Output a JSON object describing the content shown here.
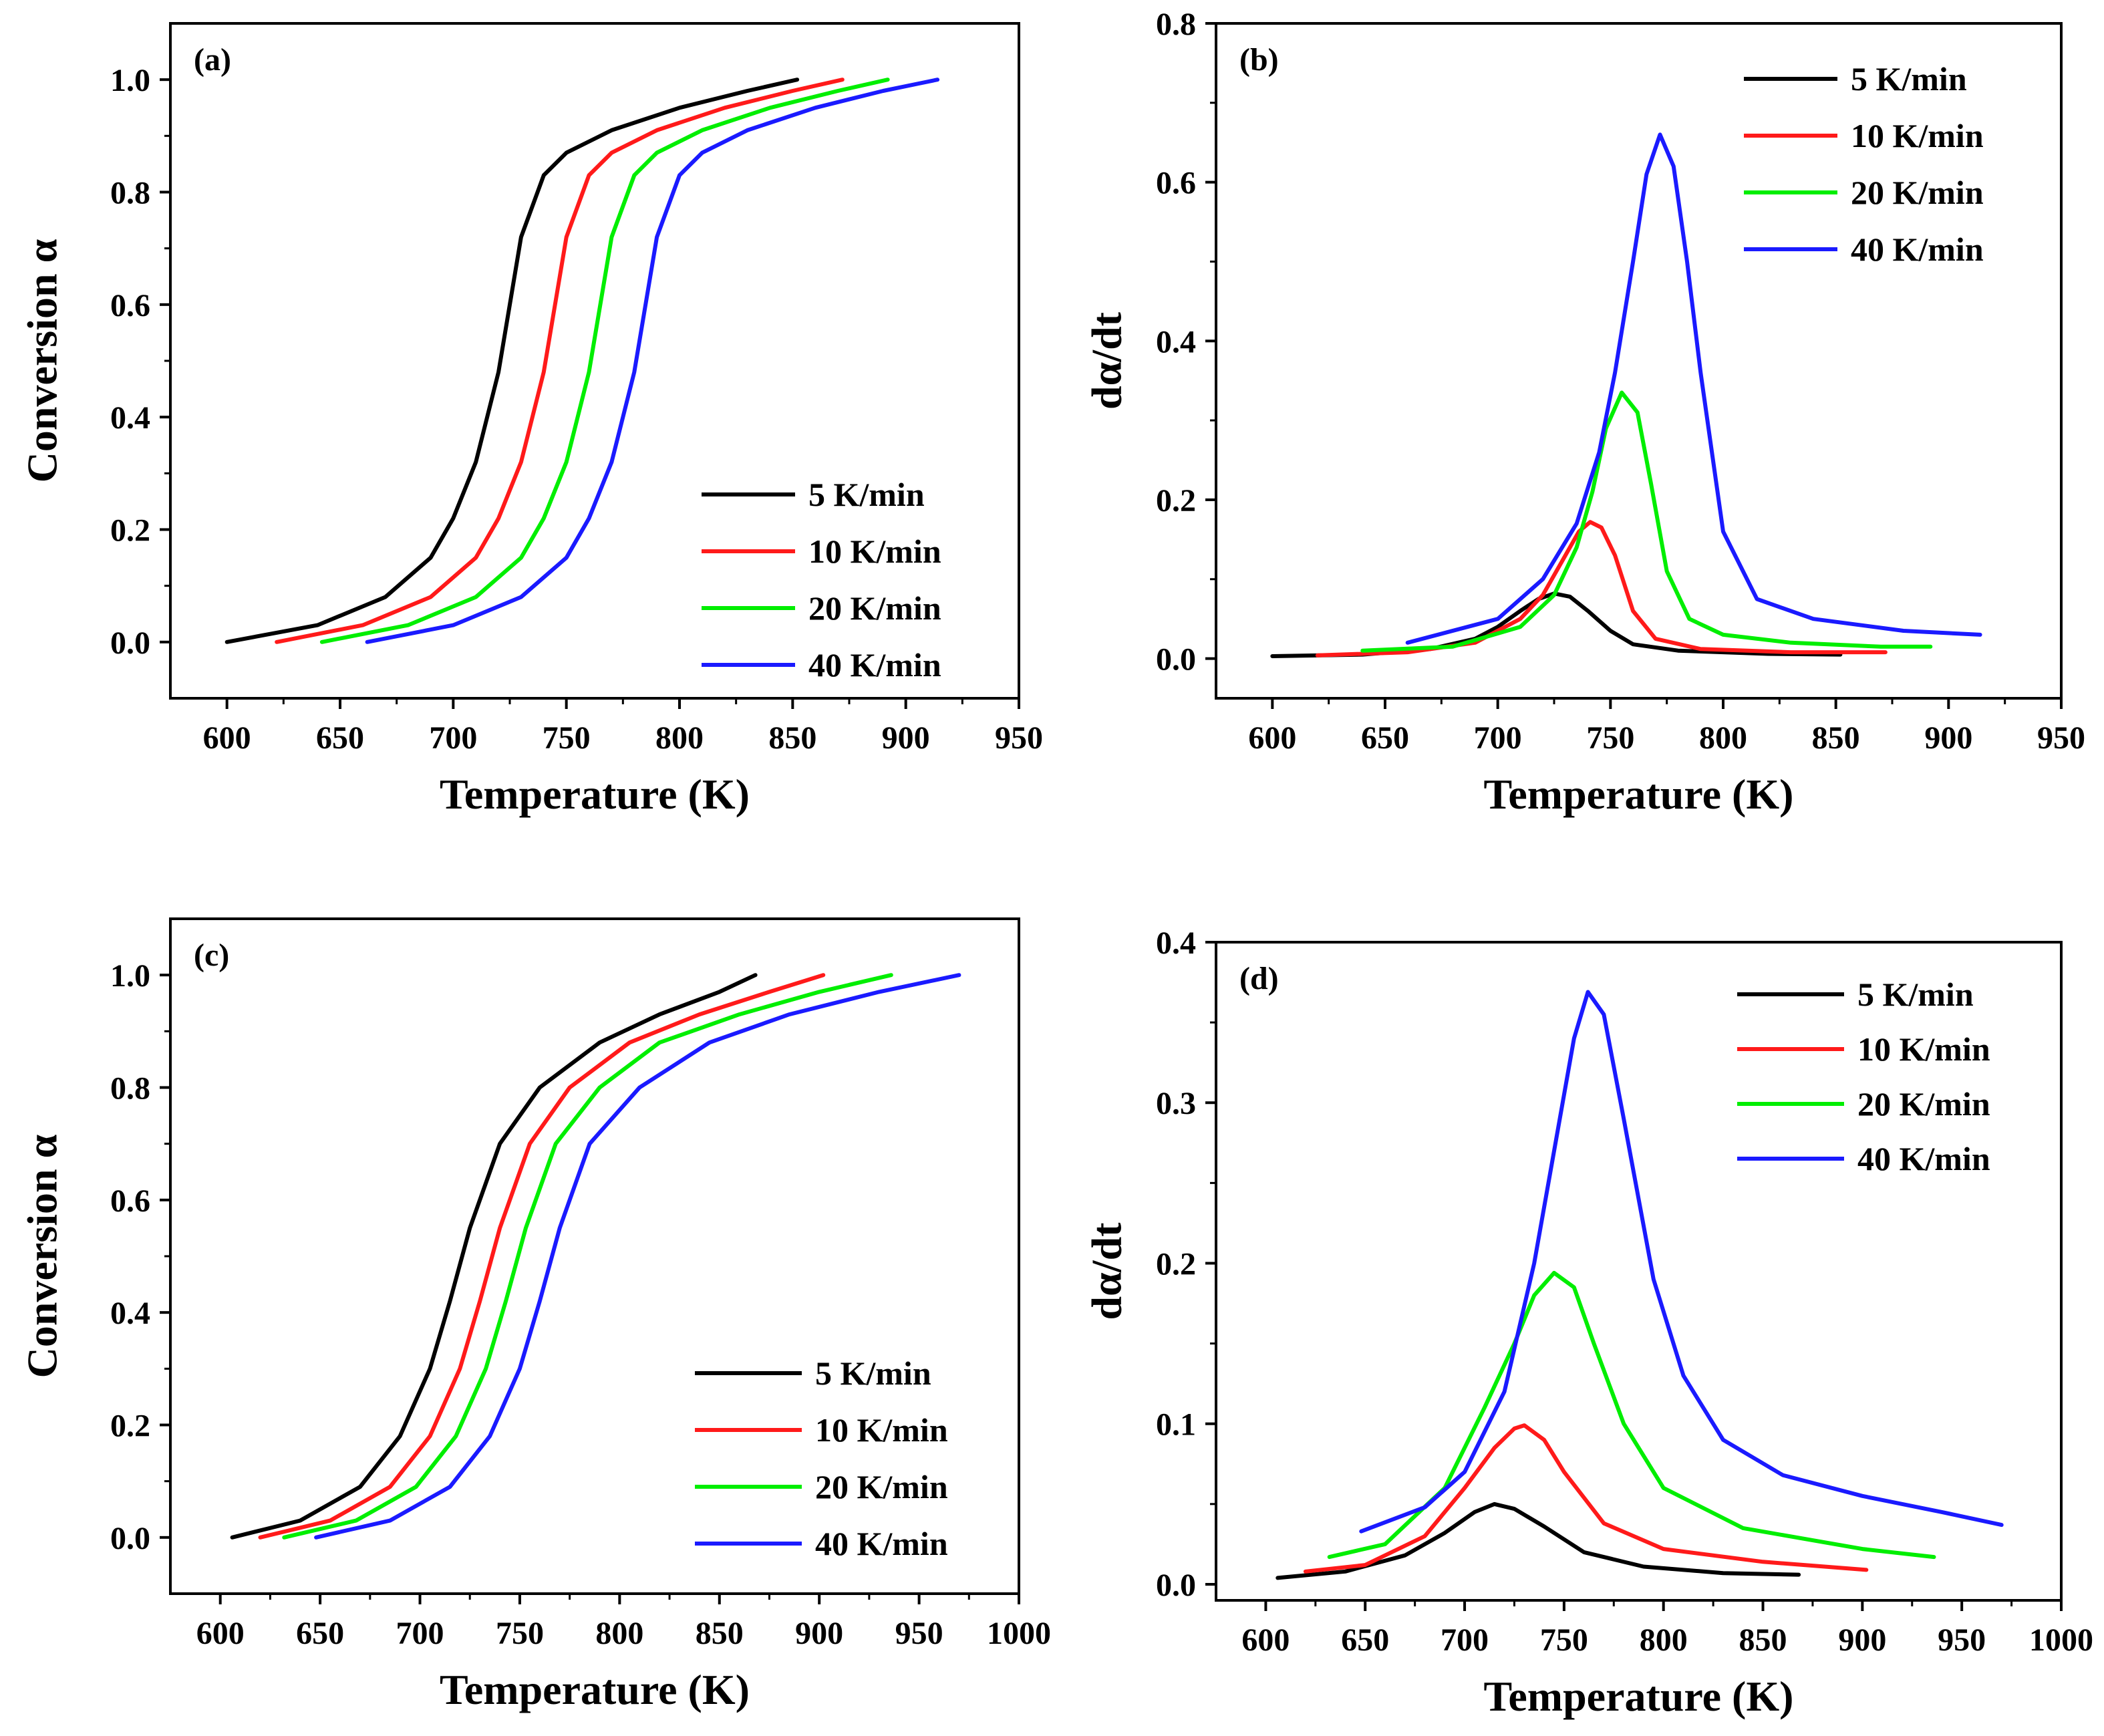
{
  "figure": {
    "colors": {
      "black": "#000000",
      "red": "#ff1a1a",
      "green": "#00ee00",
      "blue": "#1a1aff"
    }
  },
  "chart_data": [
    {
      "id": "a",
      "type": "line",
      "panel_label": "(a)",
      "xlabel": "Temperature (K)",
      "ylabel": "Conversion α",
      "xlim": [
        575,
        950
      ],
      "ylim": [
        -0.1,
        1.1
      ],
      "xticks": [
        600,
        650,
        700,
        750,
        800,
        850,
        900,
        950
      ],
      "yticks": [
        0.0,
        0.2,
        0.4,
        0.6,
        0.8,
        1.0
      ],
      "xticklabels": [
        "600",
        "650",
        "700",
        "750",
        "800",
        "850",
        "900",
        "950"
      ],
      "yticklabels": [
        "0.0",
        "0.2",
        "0.4",
        "0.6",
        "0.8",
        "1.0"
      ],
      "legend": "lower-right",
      "grid": false,
      "series": [
        {
          "name": "5 K/min",
          "color": "#000000",
          "x": [
            600,
            640,
            670,
            690,
            700,
            710,
            720,
            730,
            740,
            750,
            770,
            800,
            830,
            852
          ],
          "y": [
            0.0,
            0.03,
            0.08,
            0.15,
            0.22,
            0.32,
            0.48,
            0.72,
            0.83,
            0.87,
            0.91,
            0.95,
            0.98,
            1.0
          ]
        },
        {
          "name": "10 K/min",
          "color": "#ff1a1a",
          "x": [
            622,
            660,
            690,
            710,
            720,
            730,
            740,
            750,
            760,
            770,
            790,
            820,
            850,
            872
          ],
          "y": [
            0.0,
            0.03,
            0.08,
            0.15,
            0.22,
            0.32,
            0.48,
            0.72,
            0.83,
            0.87,
            0.91,
            0.95,
            0.98,
            1.0
          ]
        },
        {
          "name": "20 K/min",
          "color": "#00ee00",
          "x": [
            642,
            680,
            710,
            730,
            740,
            750,
            760,
            770,
            780,
            790,
            810,
            840,
            870,
            892
          ],
          "y": [
            0.0,
            0.03,
            0.08,
            0.15,
            0.22,
            0.32,
            0.48,
            0.72,
            0.83,
            0.87,
            0.91,
            0.95,
            0.98,
            1.0
          ]
        },
        {
          "name": "40 K/min",
          "color": "#1a1aff",
          "x": [
            662,
            700,
            730,
            750,
            760,
            770,
            780,
            790,
            800,
            810,
            830,
            860,
            890,
            914
          ],
          "y": [
            0.0,
            0.03,
            0.08,
            0.15,
            0.22,
            0.32,
            0.48,
            0.72,
            0.83,
            0.87,
            0.91,
            0.95,
            0.98,
            1.0
          ]
        }
      ]
    },
    {
      "id": "b",
      "type": "line",
      "panel_label": "(b)",
      "xlabel": "Temperature (K)",
      "ylabel": "dα/dt",
      "xlim": [
        575,
        950
      ],
      "ylim": [
        -0.05,
        0.8
      ],
      "xticks": [
        600,
        650,
        700,
        750,
        800,
        850,
        900,
        950
      ],
      "yticks": [
        0.0,
        0.2,
        0.4,
        0.6,
        0.8
      ],
      "xticklabels": [
        "600",
        "650",
        "700",
        "750",
        "800",
        "850",
        "900",
        "950"
      ],
      "yticklabels": [
        "0.0",
        "0.2",
        "0.4",
        "0.6",
        "0.8"
      ],
      "legend": "top-right",
      "grid": false,
      "series": [
        {
          "name": "5 K/min",
          "color": "#000000",
          "x": [
            600,
            640,
            670,
            690,
            700,
            710,
            718,
            725,
            732,
            740,
            750,
            760,
            780,
            820,
            852
          ],
          "y": [
            0.003,
            0.005,
            0.012,
            0.025,
            0.04,
            0.06,
            0.075,
            0.082,
            0.078,
            0.06,
            0.035,
            0.018,
            0.01,
            0.006,
            0.005
          ]
        },
        {
          "name": "10 K/min",
          "color": "#ff1a1a",
          "x": [
            620,
            660,
            690,
            710,
            720,
            730,
            736,
            741,
            746,
            752,
            760,
            770,
            790,
            830,
            872
          ],
          "y": [
            0.004,
            0.008,
            0.02,
            0.05,
            0.08,
            0.13,
            0.16,
            0.172,
            0.165,
            0.13,
            0.06,
            0.025,
            0.012,
            0.008,
            0.008
          ]
        },
        {
          "name": "20 K/min",
          "color": "#00ee00",
          "x": [
            640,
            680,
            710,
            725,
            735,
            742,
            748,
            755,
            762,
            768,
            775,
            785,
            800,
            830,
            870,
            892
          ],
          "y": [
            0.01,
            0.015,
            0.04,
            0.08,
            0.14,
            0.21,
            0.29,
            0.335,
            0.31,
            0.22,
            0.11,
            0.05,
            0.03,
            0.02,
            0.015,
            0.015
          ]
        },
        {
          "name": "40 K/min",
          "color": "#1a1aff",
          "x": [
            660,
            700,
            720,
            735,
            745,
            752,
            760,
            766,
            772,
            778,
            784,
            790,
            800,
            815,
            840,
            880,
            914
          ],
          "y": [
            0.02,
            0.05,
            0.1,
            0.17,
            0.26,
            0.36,
            0.5,
            0.61,
            0.66,
            0.62,
            0.5,
            0.36,
            0.16,
            0.075,
            0.05,
            0.035,
            0.03
          ]
        }
      ]
    },
    {
      "id": "c",
      "type": "line",
      "panel_label": "(c)",
      "xlabel": "Temperature (K)",
      "ylabel": "Conversion α",
      "xlim": [
        575,
        1000
      ],
      "ylim": [
        -0.1,
        1.1
      ],
      "xticks": [
        600,
        650,
        700,
        750,
        800,
        850,
        900,
        950,
        1000
      ],
      "yticks": [
        0.0,
        0.2,
        0.4,
        0.6,
        0.8,
        1.0
      ],
      "xticklabels": [
        "600",
        "650",
        "700",
        "750",
        "800",
        "850",
        "900",
        "950",
        "1000"
      ],
      "yticklabels": [
        "0.0",
        "0.2",
        "0.4",
        "0.6",
        "0.8",
        "1.0"
      ],
      "legend": "lower-right",
      "grid": false,
      "series": [
        {
          "name": "5 K/min",
          "color": "#000000",
          "x": [
            606,
            640,
            670,
            690,
            705,
            715,
            725,
            740,
            760,
            790,
            820,
            850,
            868
          ],
          "y": [
            0.0,
            0.03,
            0.09,
            0.18,
            0.3,
            0.42,
            0.55,
            0.7,
            0.8,
            0.88,
            0.93,
            0.97,
            1.0
          ]
        },
        {
          "name": "10 K/min",
          "color": "#ff1a1a",
          "x": [
            620,
            655,
            685,
            705,
            720,
            730,
            740,
            755,
            775,
            805,
            840,
            875,
            902
          ],
          "y": [
            0.0,
            0.03,
            0.09,
            0.18,
            0.3,
            0.42,
            0.55,
            0.7,
            0.8,
            0.88,
            0.93,
            0.97,
            1.0
          ]
        },
        {
          "name": "20 K/min",
          "color": "#00ee00",
          "x": [
            632,
            668,
            698,
            718,
            733,
            743,
            753,
            768,
            790,
            820,
            860,
            900,
            936
          ],
          "y": [
            0.0,
            0.03,
            0.09,
            0.18,
            0.3,
            0.42,
            0.55,
            0.7,
            0.8,
            0.88,
            0.93,
            0.97,
            1.0
          ]
        },
        {
          "name": "40 K/min",
          "color": "#1a1aff",
          "x": [
            648,
            685,
            715,
            735,
            750,
            760,
            770,
            785,
            810,
            845,
            885,
            930,
            970
          ],
          "y": [
            0.0,
            0.03,
            0.09,
            0.18,
            0.3,
            0.42,
            0.55,
            0.7,
            0.8,
            0.88,
            0.93,
            0.97,
            1.0
          ]
        }
      ]
    },
    {
      "id": "d",
      "type": "line",
      "panel_label": "(d)",
      "xlabel": "Temperature (K)",
      "ylabel": "dα/dt",
      "xlim": [
        575,
        1000
      ],
      "ylim": [
        -0.01,
        0.4
      ],
      "xticks": [
        600,
        650,
        700,
        750,
        800,
        850,
        900,
        950,
        1000
      ],
      "yticks": [
        0.0,
        0.1,
        0.2,
        0.3,
        0.4
      ],
      "xticklabels": [
        "600",
        "650",
        "700",
        "750",
        "800",
        "850",
        "900",
        "950",
        "1000"
      ],
      "yticklabels": [
        "0.0",
        "0.1",
        "0.2",
        "0.3",
        "0.4"
      ],
      "legend": "top-right",
      "grid": false,
      "series": [
        {
          "name": "5 K/min",
          "color": "#000000",
          "x": [
            606,
            640,
            670,
            690,
            705,
            715,
            725,
            740,
            760,
            790,
            830,
            868
          ],
          "y": [
            0.004,
            0.008,
            0.018,
            0.032,
            0.045,
            0.05,
            0.047,
            0.036,
            0.02,
            0.011,
            0.007,
            0.006
          ]
        },
        {
          "name": "10 K/min",
          "color": "#ff1a1a",
          "x": [
            620,
            650,
            680,
            700,
            715,
            725,
            730,
            740,
            750,
            770,
            800,
            850,
            902
          ],
          "y": [
            0.008,
            0.012,
            0.03,
            0.06,
            0.085,
            0.097,
            0.099,
            0.09,
            0.07,
            0.038,
            0.022,
            0.014,
            0.009
          ]
        },
        {
          "name": "20 K/min",
          "color": "#00ee00",
          "x": [
            632,
            660,
            690,
            710,
            725,
            735,
            745,
            755,
            765,
            780,
            800,
            840,
            900,
            936
          ],
          "y": [
            0.017,
            0.025,
            0.06,
            0.11,
            0.15,
            0.18,
            0.194,
            0.185,
            0.15,
            0.1,
            0.06,
            0.035,
            0.022,
            0.017
          ]
        },
        {
          "name": "40 K/min",
          "color": "#1a1aff",
          "x": [
            648,
            680,
            700,
            720,
            735,
            745,
            755,
            762,
            770,
            780,
            795,
            810,
            830,
            860,
            900,
            940,
            970
          ],
          "y": [
            0.033,
            0.048,
            0.07,
            0.12,
            0.2,
            0.27,
            0.34,
            0.369,
            0.355,
            0.29,
            0.19,
            0.13,
            0.09,
            0.068,
            0.055,
            0.045,
            0.037
          ]
        }
      ]
    }
  ]
}
